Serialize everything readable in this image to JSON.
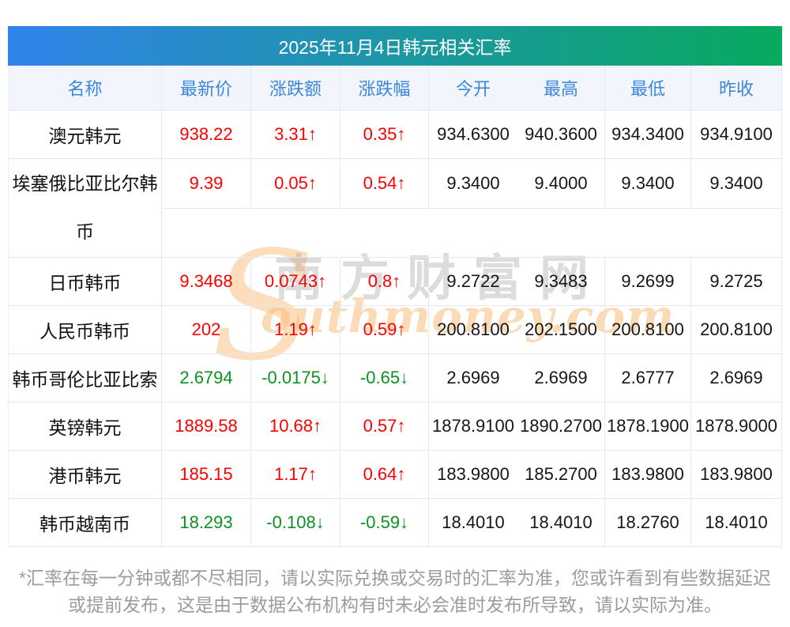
{
  "title": "2025年11月4日韩元相关汇率",
  "chart_data": {
    "type": "table",
    "title": "2025年11月4日韩元相关汇率",
    "columns": [
      "名称",
      "最新价",
      "涨跌额",
      "涨跌幅",
      "今开",
      "最高",
      "最低",
      "昨收"
    ],
    "rows": [
      {
        "name": "澳元韩元",
        "last": "938.22",
        "change": "3.31↑",
        "pct": "0.35↑",
        "open": "934.6300",
        "high": "940.3600",
        "low": "934.3400",
        "prev": "934.9100",
        "trend": "up"
      },
      {
        "name": "埃塞俄比亚比尔韩币",
        "last": "9.39",
        "change": "0.05↑",
        "pct": "0.54↑",
        "open": "9.3400",
        "high": "9.4000",
        "low": "9.3400",
        "prev": "9.3400",
        "trend": "up",
        "tall": true
      },
      {
        "name": "日币韩币",
        "last": "9.3468",
        "change": "0.0743↑",
        "pct": "0.8↑",
        "open": "9.2722",
        "high": "9.3483",
        "low": "9.2699",
        "prev": "9.2725",
        "trend": "up"
      },
      {
        "name": "人民币韩币",
        "last": "202",
        "change": "1.19↑",
        "pct": "0.59↑",
        "open": "200.8100",
        "high": "202.1500",
        "low": "200.8100",
        "prev": "200.8100",
        "trend": "up"
      },
      {
        "name": "韩币哥伦比亚比索",
        "last": "2.6794",
        "change": "-0.0175↓",
        "pct": "-0.65↓",
        "open": "2.6969",
        "high": "2.6969",
        "low": "2.6777",
        "prev": "2.6969",
        "trend": "down"
      },
      {
        "name": "英镑韩元",
        "last": "1889.58",
        "change": "10.68↑",
        "pct": "0.57↑",
        "open": "1878.9100",
        "high": "1890.2700",
        "low": "1878.1900",
        "prev": "1878.9000",
        "trend": "up"
      },
      {
        "name": "港币韩元",
        "last": "185.15",
        "change": "1.17↑",
        "pct": "0.64↑",
        "open": "183.9800",
        "high": "185.2700",
        "low": "183.9800",
        "prev": "183.9800",
        "trend": "up"
      },
      {
        "name": "韩币越南币",
        "last": "18.293",
        "change": "-0.108↓",
        "pct": "-0.59↓",
        "open": "18.4010",
        "high": "18.4010",
        "low": "18.2760",
        "prev": "18.4010",
        "trend": "down"
      }
    ]
  },
  "watermark": {
    "initial": "S",
    "cn": "南方财富网",
    "en": "outhmoney.com"
  },
  "footnote": "*汇率在每一分钟或都不尽相同，请以实际兑换或交易时的汇率为准，您或许看到有些数据延迟或提前发布，这是由于数据公布机构有时未必会准时发布所导致，请以实际为准。",
  "colors": {
    "up": "#fb0000",
    "down": "#0b9220",
    "header_text": "#3b86dc",
    "header_bg": "#f2f6fc",
    "gradient_left": "#3183eb",
    "gradient_right": "#08aa5e"
  }
}
